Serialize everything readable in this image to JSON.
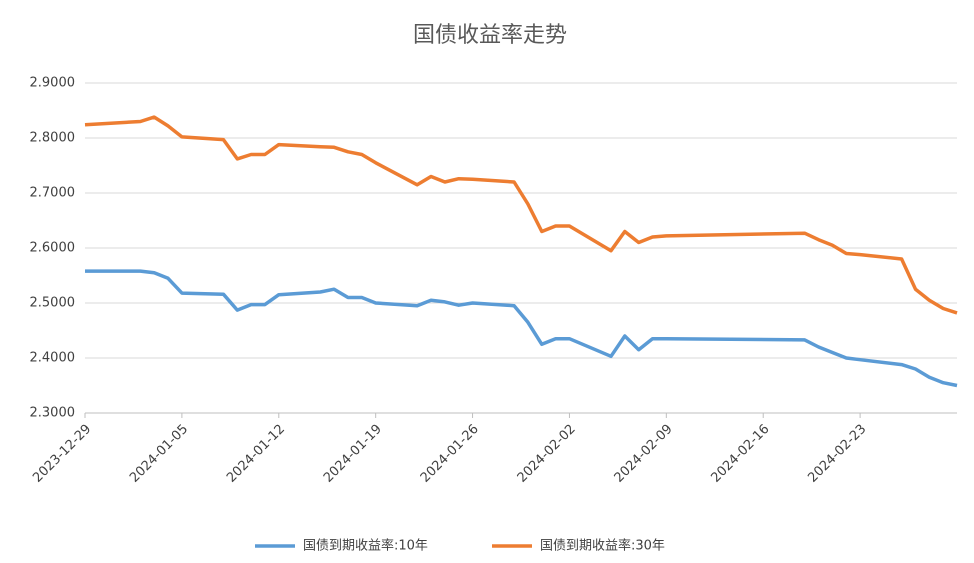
{
  "chart_data": {
    "type": "line",
    "title": "国债收益率走势",
    "x": [
      "2023-12-29",
      "2024-01-02",
      "2024-01-03",
      "2024-01-04",
      "2024-01-05",
      "2024-01-08",
      "2024-01-09",
      "2024-01-10",
      "2024-01-11",
      "2024-01-12",
      "2024-01-15",
      "2024-01-16",
      "2024-01-17",
      "2024-01-18",
      "2024-01-19",
      "2024-01-22",
      "2024-01-23",
      "2024-01-24",
      "2024-01-25",
      "2024-01-26",
      "2024-01-29",
      "2024-01-30",
      "2024-01-31",
      "2024-02-01",
      "2024-02-02",
      "2024-02-05",
      "2024-02-06",
      "2024-02-07",
      "2024-02-08",
      "2024-02-09",
      "2024-02-19",
      "2024-02-20",
      "2024-02-21",
      "2024-02-22",
      "2024-02-23",
      "2024-02-26",
      "2024-02-27",
      "2024-02-28",
      "2024-02-29",
      "2024-03-01"
    ],
    "series": [
      {
        "name": "国债到期收益率:10年",
        "color": "#5b9bd5",
        "values": [
          2.558,
          2.558,
          2.555,
          2.545,
          2.518,
          2.516,
          2.487,
          2.497,
          2.497,
          2.515,
          2.52,
          2.525,
          2.51,
          2.51,
          2.5,
          2.495,
          2.505,
          2.502,
          2.496,
          2.5,
          2.495,
          2.465,
          2.425,
          2.435,
          2.435,
          2.403,
          2.44,
          2.415,
          2.435,
          2.435,
          2.433,
          2.42,
          2.41,
          2.4,
          2.397,
          2.388,
          2.38,
          2.365,
          2.355,
          2.35
        ]
      },
      {
        "name": "国债到期收益率:30年",
        "color": "#ed7d31",
        "values": [
          2.824,
          2.83,
          2.838,
          2.822,
          2.802,
          2.797,
          2.762,
          2.77,
          2.77,
          2.788,
          2.784,
          2.783,
          2.775,
          2.77,
          2.755,
          2.715,
          2.73,
          2.72,
          2.726,
          2.725,
          2.72,
          2.68,
          2.63,
          2.64,
          2.64,
          2.595,
          2.63,
          2.61,
          2.62,
          2.622,
          2.627,
          2.615,
          2.605,
          2.59,
          2.588,
          2.58,
          2.525,
          2.505,
          2.49,
          2.482
        ]
      }
    ],
    "xlim": [
      "2023-12-29",
      "2024-03-01"
    ],
    "xticks": [
      "2023-12-29",
      "2024-01-05",
      "2024-01-12",
      "2024-01-19",
      "2024-01-26",
      "2024-02-02",
      "2024-02-09",
      "2024-02-16",
      "2024-02-23"
    ],
    "ylim": [
      2.3,
      2.9
    ],
    "yticks": [
      {
        "value": 2.3,
        "label": "2.3000"
      },
      {
        "value": 2.4,
        "label": "2.4000"
      },
      {
        "value": 2.5,
        "label": "2.5000"
      },
      {
        "value": 2.6,
        "label": "2.6000"
      },
      {
        "value": 2.7,
        "label": "2.7000"
      },
      {
        "value": 2.8,
        "label": "2.8000"
      },
      {
        "value": 2.9,
        "label": "2.9000"
      }
    ],
    "grid": true
  }
}
